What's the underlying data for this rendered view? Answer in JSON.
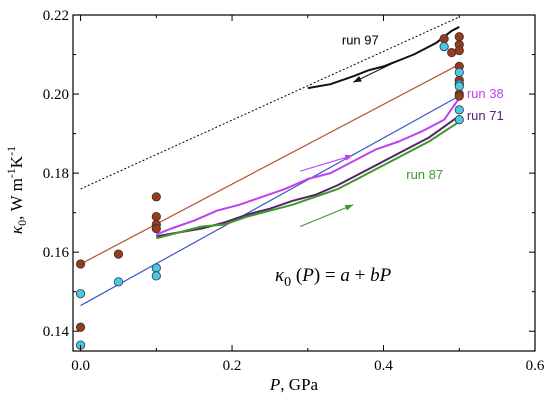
{
  "chart_data": {
    "type": "scatter",
    "x_axis": {
      "label_var": "P",
      "label_unit": ", GPa",
      "range": [
        -0.01,
        0.6
      ],
      "ticks": [
        0.0,
        0.2,
        0.4,
        0.6
      ],
      "tick_labels": [
        "0.0",
        "0.2",
        "0.4",
        "0.6"
      ]
    },
    "y_axis": {
      "label_html": "κ0, W m-1K-1",
      "range": [
        0.135,
        0.22
      ],
      "ticks": [
        0.14,
        0.16,
        0.18,
        0.2,
        0.22
      ],
      "tick_labels": [
        "0.14",
        "0.16",
        "0.18",
        "0.20",
        "0.22"
      ]
    },
    "equation": "κ0 (P) = a + bP",
    "fit_lines": [
      {
        "color": "#b5532f",
        "x": [
          0.0,
          0.5
        ],
        "y": [
          0.157,
          0.2075
        ]
      },
      {
        "color": "#3a55c8",
        "x": [
          0.0,
          0.5
        ],
        "y": [
          0.1465,
          0.1995
        ]
      }
    ],
    "extrapolation": {
      "color": "#000000",
      "x": [
        0.0,
        0.5
      ],
      "y": [
        0.176,
        0.2195
      ]
    },
    "runs": [
      {
        "name": "run 97",
        "color": "#111111",
        "x": [
          0.3,
          0.33,
          0.36,
          0.38,
          0.4,
          0.42,
          0.44,
          0.46,
          0.47,
          0.48,
          0.49,
          0.5
        ],
        "y": [
          0.2015,
          0.2025,
          0.2045,
          0.206,
          0.207,
          0.2085,
          0.21,
          0.212,
          0.213,
          0.2145,
          0.216,
          0.217
        ]
      },
      {
        "name": "run 38",
        "color": "#c040f0",
        "x": [
          0.1,
          0.12,
          0.15,
          0.18,
          0.21,
          0.24,
          0.27,
          0.3,
          0.33,
          0.36,
          0.39,
          0.42,
          0.45,
          0.48,
          0.5
        ],
        "y": [
          0.1645,
          0.166,
          0.168,
          0.1705,
          0.172,
          0.174,
          0.176,
          0.1785,
          0.18,
          0.183,
          0.186,
          0.188,
          0.1905,
          0.1935,
          0.199
        ]
      },
      {
        "name": "run 71",
        "color": "#5a2070",
        "x": [
          0.1,
          0.13,
          0.16,
          0.19,
          0.22,
          0.25,
          0.28,
          0.31,
          0.34,
          0.37,
          0.4,
          0.43,
          0.46,
          0.5
        ],
        "y": [
          0.164,
          0.165,
          0.166,
          0.1675,
          0.1695,
          0.171,
          0.173,
          0.1745,
          0.177,
          0.18,
          0.183,
          0.186,
          0.189,
          0.1945
        ]
      },
      {
        "name": "run 87",
        "color": "#3c9a2a",
        "x": [
          0.1,
          0.13,
          0.16,
          0.19,
          0.22,
          0.25,
          0.28,
          0.31,
          0.34,
          0.37,
          0.4,
          0.43,
          0.46,
          0.5
        ],
        "y": [
          0.1635,
          0.165,
          0.1665,
          0.167,
          0.169,
          0.1705,
          0.172,
          0.174,
          0.176,
          0.179,
          0.182,
          0.185,
          0.188,
          0.193
        ]
      }
    ],
    "arrows": [
      {
        "color": "#111111",
        "from": [
          0.42,
          0.2085
        ],
        "to": [
          0.36,
          0.203
        ]
      },
      {
        "color": "#c040f0",
        "from": [
          0.29,
          0.1805
        ],
        "to": [
          0.36,
          0.1845
        ]
      },
      {
        "color": "#3c9a2a",
        "from": [
          0.29,
          0.1665
        ],
        "to": [
          0.36,
          0.172
        ]
      }
    ],
    "run_labels": [
      {
        "text": "run 97",
        "color": "#000000",
        "x": 0.345,
        "y": 0.2125
      },
      {
        "text": "run 38",
        "color": "#c040f0",
        "x": 0.51,
        "y": 0.199
      },
      {
        "text": "run 71",
        "color": "#5a2070",
        "x": 0.51,
        "y": 0.1935
      },
      {
        "text": "run 87",
        "color": "#3c9a2a",
        "x": 0.43,
        "y": 0.1785
      }
    ],
    "points_brown": {
      "color": "#9a3a1a",
      "x": [
        0.0,
        0.0,
        0.05,
        0.1,
        0.1,
        0.1,
        0.1,
        0.48,
        0.49,
        0.5,
        0.5,
        0.5,
        0.5,
        0.5,
        0.5,
        0.5
      ],
      "y": [
        0.157,
        0.141,
        0.1595,
        0.174,
        0.169,
        0.167,
        0.166,
        0.214,
        0.2105,
        0.2145,
        0.2125,
        0.211,
        0.207,
        0.2035,
        0.2,
        0.1995
      ]
    },
    "points_blue": {
      "color": "#4ac8ea",
      "x": [
        0.0,
        0.0,
        0.05,
        0.1,
        0.1,
        0.48,
        0.5,
        0.5,
        0.5,
        0.5,
        0.5
      ],
      "y": [
        0.1495,
        0.1365,
        0.1525,
        0.156,
        0.154,
        0.212,
        0.2055,
        0.2025,
        0.202,
        0.196,
        0.1935
      ]
    }
  }
}
